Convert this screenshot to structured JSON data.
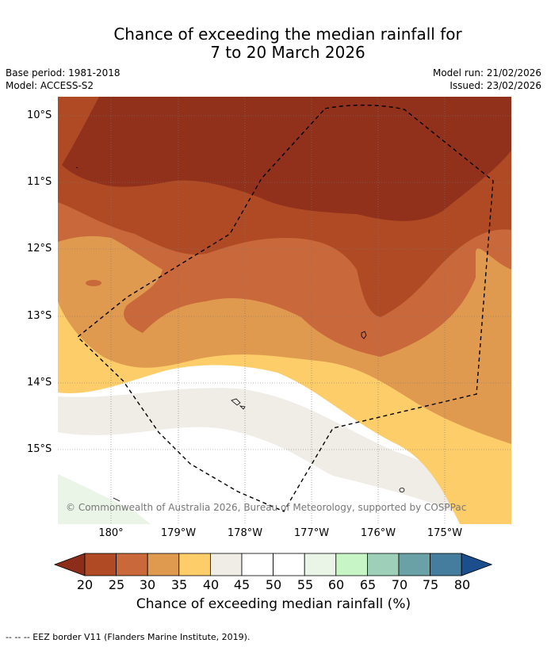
{
  "title_line1": "Chance of exceeding the median rainfall for",
  "title_line2": "7 to 20 March 2026",
  "base_period": "Base period: 1981-2018",
  "model": "Model: ACCESS-S2",
  "model_run": "Model run: 21/02/2026",
  "issued": "Issued: 23/02/2026",
  "lat_labels": [
    "10°S",
    "11°S",
    "12°S",
    "13°S",
    "14°S",
    "15°S"
  ],
  "lon_labels": [
    "180°",
    "179°W",
    "178°W",
    "177°W",
    "176°W",
    "175°W"
  ],
  "colorbar": {
    "ticks": [
      "20",
      "25",
      "30",
      "35",
      "40",
      "45",
      "50",
      "55",
      "60",
      "65",
      "70",
      "75",
      "80"
    ],
    "label": "Chance of exceeding median rainfall (%)",
    "colors": [
      "#8c2d1a",
      "#b04a25",
      "#c9683a",
      "#e09a50",
      "#fdcd6a",
      "#f0ece6",
      "#ffffff",
      "#ffffff",
      "#eaf5e8",
      "#c8f5c6",
      "#9dcfb9",
      "#6aa1a6",
      "#447d9d",
      "#1a4e8c"
    ]
  },
  "copyright": "© Commonwealth of Australia 2026, Bureau of Meteorology, supported by COSPPac",
  "footer": "--  --  -- EEZ border V11 (Flanders Marine Institute, 2019)."
}
